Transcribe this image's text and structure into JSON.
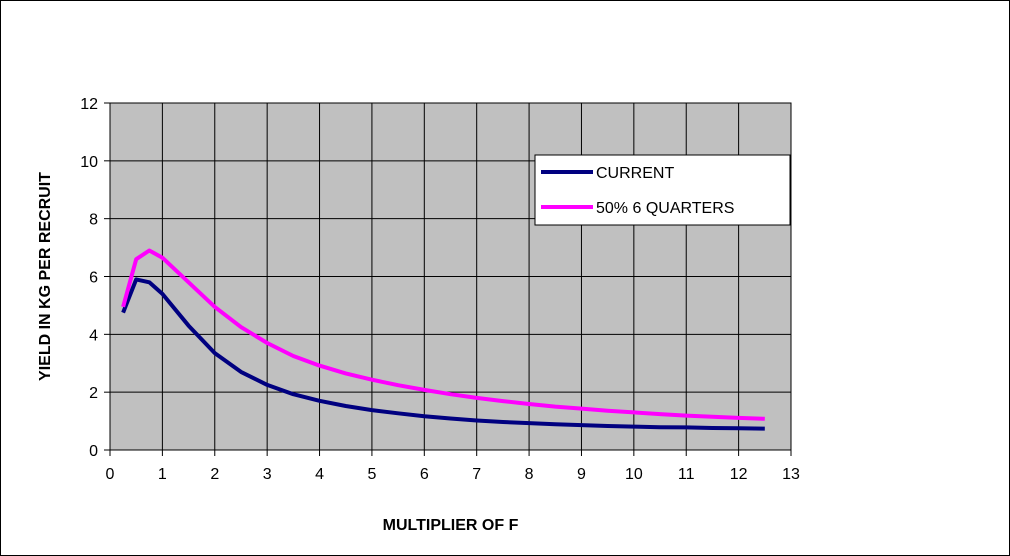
{
  "chart_data": {
    "type": "line",
    "title": "",
    "xlabel": "MULTIPLIER OF F",
    "ylabel": "YIELD IN KG PER RECRUIT",
    "xlim": [
      0,
      13
    ],
    "ylim": [
      0,
      12
    ],
    "x_ticks": [
      "0",
      "1",
      "2",
      "3",
      "4",
      "5",
      "6",
      "7",
      "8",
      "9",
      "10",
      "11",
      "12",
      "13"
    ],
    "y_ticks": [
      "0",
      "2",
      "4",
      "6",
      "8",
      "10",
      "12"
    ],
    "grid": true,
    "plot_background": "#C0C0C0",
    "legend_position": "top-right",
    "series": [
      {
        "name": "CURRENT",
        "color": "#000080",
        "points": [
          [
            0.25,
            4.75
          ],
          [
            0.5,
            5.9
          ],
          [
            0.75,
            5.8
          ],
          [
            1,
            5.4
          ],
          [
            1.5,
            4.3
          ],
          [
            2,
            3.35
          ],
          [
            2.5,
            2.7
          ],
          [
            3,
            2.25
          ],
          [
            3.5,
            1.93
          ],
          [
            4,
            1.7
          ],
          [
            4.5,
            1.52
          ],
          [
            5,
            1.38
          ],
          [
            5.5,
            1.27
          ],
          [
            6,
            1.17
          ],
          [
            6.5,
            1.09
          ],
          [
            7,
            1.02
          ],
          [
            7.5,
            0.97
          ],
          [
            8,
            0.93
          ],
          [
            8.5,
            0.89
          ],
          [
            9,
            0.86
          ],
          [
            9.5,
            0.83
          ],
          [
            10,
            0.81
          ],
          [
            10.5,
            0.79
          ],
          [
            11,
            0.78
          ],
          [
            11.5,
            0.76
          ],
          [
            12,
            0.75
          ],
          [
            12.5,
            0.74
          ]
        ]
      },
      {
        "name": "50% 6 QUARTERS",
        "color": "#FF00FF",
        "points": [
          [
            0.25,
            4.95
          ],
          [
            0.5,
            6.6
          ],
          [
            0.75,
            6.9
          ],
          [
            1,
            6.65
          ],
          [
            1.5,
            5.8
          ],
          [
            2,
            4.95
          ],
          [
            2.5,
            4.25
          ],
          [
            3,
            3.7
          ],
          [
            3.5,
            3.25
          ],
          [
            4,
            2.92
          ],
          [
            4.5,
            2.65
          ],
          [
            5,
            2.43
          ],
          [
            5.5,
            2.24
          ],
          [
            6,
            2.08
          ],
          [
            6.5,
            1.93
          ],
          [
            7,
            1.8
          ],
          [
            7.5,
            1.69
          ],
          [
            8,
            1.59
          ],
          [
            8.5,
            1.5
          ],
          [
            9,
            1.43
          ],
          [
            9.5,
            1.36
          ],
          [
            10,
            1.3
          ],
          [
            10.5,
            1.24
          ],
          [
            11,
            1.19
          ],
          [
            11.5,
            1.15
          ],
          [
            12,
            1.11
          ],
          [
            12.5,
            1.08
          ]
        ]
      }
    ]
  }
}
